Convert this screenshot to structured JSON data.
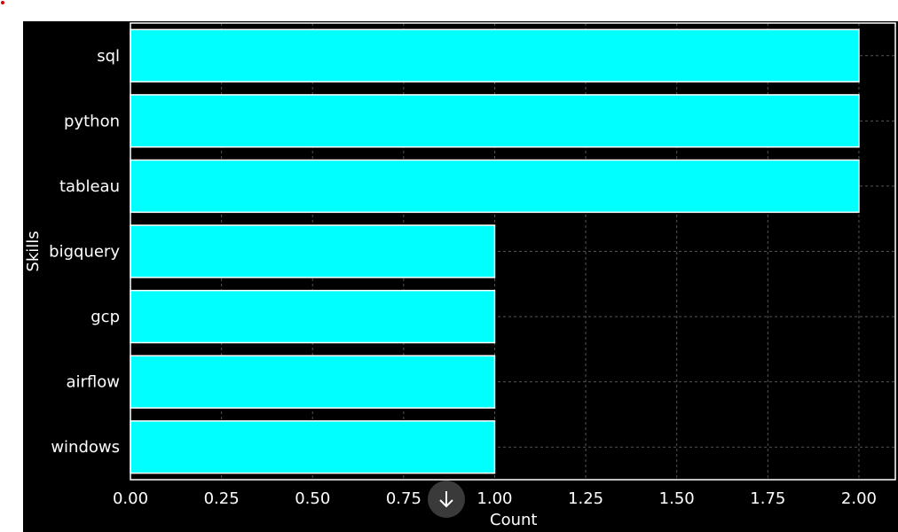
{
  "chart_data": {
    "type": "bar",
    "orientation": "horizontal",
    "categories": [
      "sql",
      "python",
      "tableau",
      "bigquery",
      "gcp",
      "airflow",
      "windows"
    ],
    "values": [
      2,
      2,
      2,
      1,
      1,
      1,
      1
    ],
    "xlabel": "Count",
    "ylabel": "Skills",
    "xlim": [
      0,
      2.1
    ],
    "xticks": [
      "0.00",
      "0.25",
      "0.50",
      "0.75",
      "1.00",
      "1.25",
      "1.50",
      "1.75",
      "2.00"
    ],
    "grid": true,
    "bar_color": "#00ffff",
    "bar_edge_color": "#ffffff",
    "background_color": "#000000",
    "grid_color": "#555555"
  },
  "controls": {
    "scroll_icon": "arrow-down-icon"
  }
}
